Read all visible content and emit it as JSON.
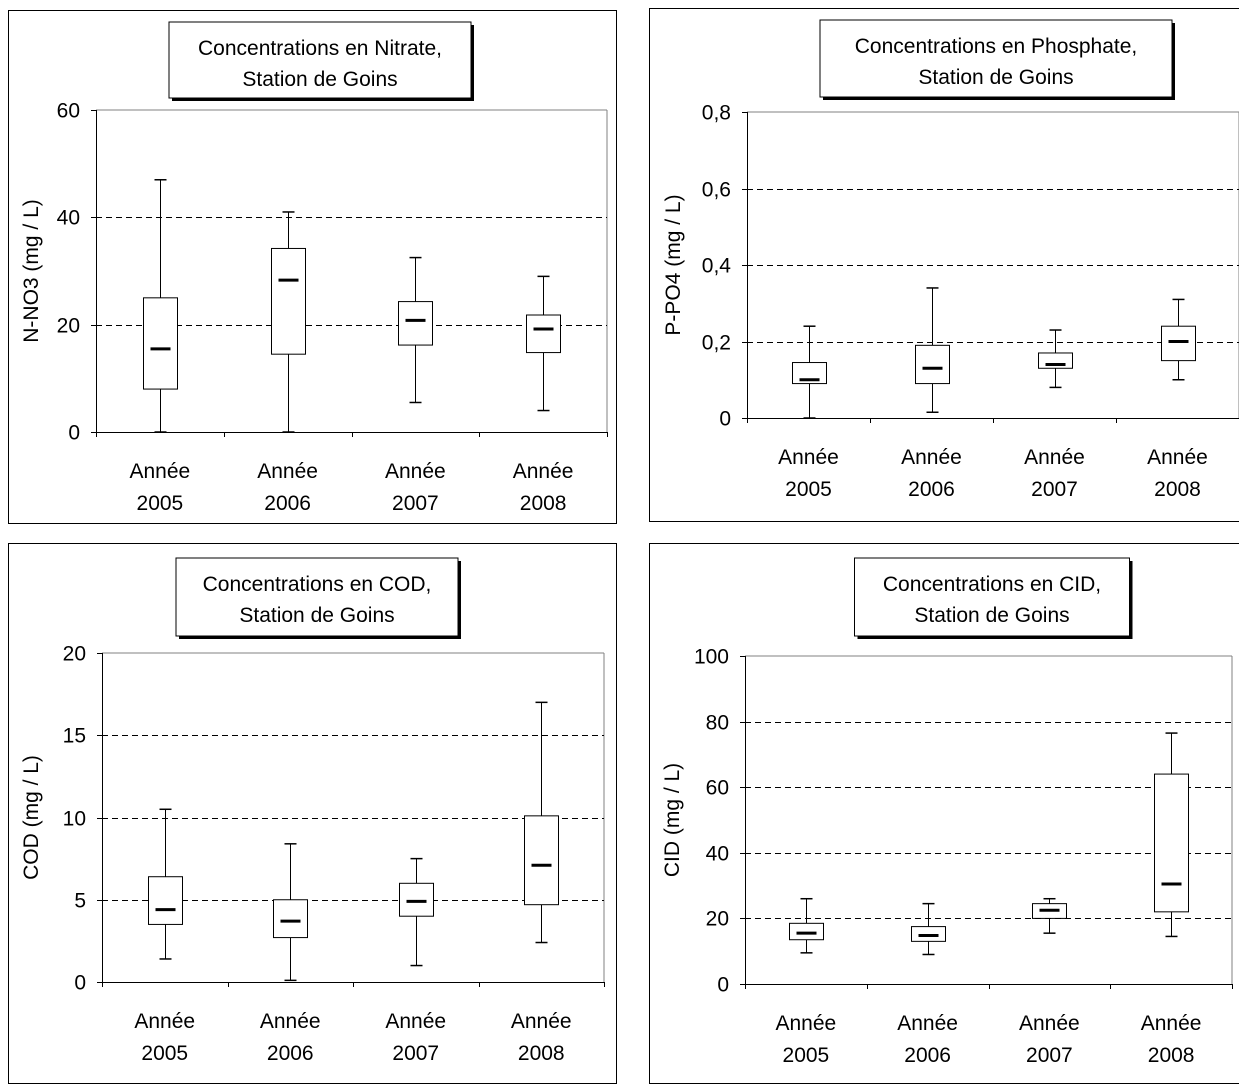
{
  "chart_data": [
    {
      "type": "boxplot",
      "title": [
        "Concentrations en Nitrate,",
        "Station de Goins"
      ],
      "ylabel": "N-NO3 (mg / L)",
      "ylim": [
        0,
        60
      ],
      "yticks": [
        0,
        20,
        40,
        60
      ],
      "ytick_labels": [
        "0",
        "20",
        "40",
        "60"
      ],
      "grid": "dashed-horizontal",
      "categories": [
        [
          "Année",
          "2005"
        ],
        [
          "Année",
          "2006"
        ],
        [
          "Année",
          "2007"
        ],
        [
          "Année",
          "2008"
        ]
      ],
      "boxes": [
        {
          "min": 0,
          "q1": 8,
          "median": 15.5,
          "q3": 25,
          "max": 47
        },
        {
          "min": 0,
          "q1": 14.5,
          "median": 28.3,
          "q3": 34.2,
          "max": 41
        },
        {
          "min": 5.5,
          "q1": 16.2,
          "median": 20.8,
          "q3": 24.3,
          "max": 32.5
        },
        {
          "min": 4,
          "q1": 14.8,
          "median": 19.2,
          "q3": 21.8,
          "max": 29
        }
      ]
    },
    {
      "type": "boxplot",
      "title": [
        "Concentrations en Phosphate,",
        "Station de Goins"
      ],
      "ylabel": "P-PO4 (mg / L)",
      "ylim": [
        0,
        0.8
      ],
      "yticks": [
        0,
        0.2,
        0.4,
        0.6,
        0.8
      ],
      "ytick_labels": [
        "0",
        "0,2",
        "0,4",
        "0,6",
        "0,8"
      ],
      "grid": "dashed-horizontal",
      "categories": [
        [
          "Année",
          "2005"
        ],
        [
          "Année",
          "2006"
        ],
        [
          "Année",
          "2007"
        ],
        [
          "Année",
          "2008"
        ]
      ],
      "boxes": [
        {
          "min": 0,
          "q1": 0.09,
          "median": 0.1,
          "q3": 0.145,
          "max": 0.24
        },
        {
          "min": 0.015,
          "q1": 0.09,
          "median": 0.13,
          "q3": 0.19,
          "max": 0.34
        },
        {
          "min": 0.08,
          "q1": 0.13,
          "median": 0.14,
          "q3": 0.17,
          "max": 0.23
        },
        {
          "min": 0.1,
          "q1": 0.15,
          "median": 0.2,
          "q3": 0.24,
          "max": 0.31
        }
      ]
    },
    {
      "type": "boxplot",
      "title": [
        "Concentrations en COD,",
        "Station de Goins"
      ],
      "ylabel": "COD (mg / L)",
      "ylim": [
        0,
        20
      ],
      "yticks": [
        0,
        5,
        10,
        15,
        20
      ],
      "ytick_labels": [
        "0",
        "5",
        "10",
        "15",
        "20"
      ],
      "grid": "dashed-horizontal",
      "categories": [
        [
          "Année",
          "2005"
        ],
        [
          "Année",
          "2006"
        ],
        [
          "Année",
          "2007"
        ],
        [
          "Année",
          "2008"
        ]
      ],
      "boxes": [
        {
          "min": 1.4,
          "q1": 3.5,
          "median": 4.4,
          "q3": 6.4,
          "max": 10.5
        },
        {
          "min": 0.1,
          "q1": 2.7,
          "median": 3.7,
          "q3": 5.0,
          "max": 8.4
        },
        {
          "min": 1.0,
          "q1": 4.0,
          "median": 4.9,
          "q3": 6.0,
          "max": 7.5
        },
        {
          "min": 2.4,
          "q1": 4.7,
          "median": 7.1,
          "q3": 10.1,
          "max": 17
        }
      ]
    },
    {
      "type": "boxplot",
      "title": [
        "Concentrations en CID,",
        "Station de Goins"
      ],
      "ylabel": "CID (mg / L)",
      "ylim": [
        0,
        100
      ],
      "yticks": [
        0,
        20,
        40,
        60,
        80,
        100
      ],
      "ytick_labels": [
        "0",
        "20",
        "40",
        "60",
        "80",
        "100"
      ],
      "grid": "dashed-horizontal",
      "categories": [
        [
          "Année",
          "2005"
        ],
        [
          "Année",
          "2006"
        ],
        [
          "Année",
          "2007"
        ],
        [
          "Année",
          "2008"
        ]
      ],
      "boxes": [
        {
          "min": 9.5,
          "q1": 13.5,
          "median": 15.5,
          "q3": 18.5,
          "max": 26
        },
        {
          "min": 9,
          "q1": 13,
          "median": 14.8,
          "q3": 17.5,
          "max": 24.5
        },
        {
          "min": 15.5,
          "q1": 20,
          "median": 22.5,
          "q3": 24.5,
          "max": 26
        },
        {
          "min": 14.5,
          "q1": 22,
          "median": 30.5,
          "q3": 64,
          "max": 76.5
        }
      ]
    }
  ]
}
